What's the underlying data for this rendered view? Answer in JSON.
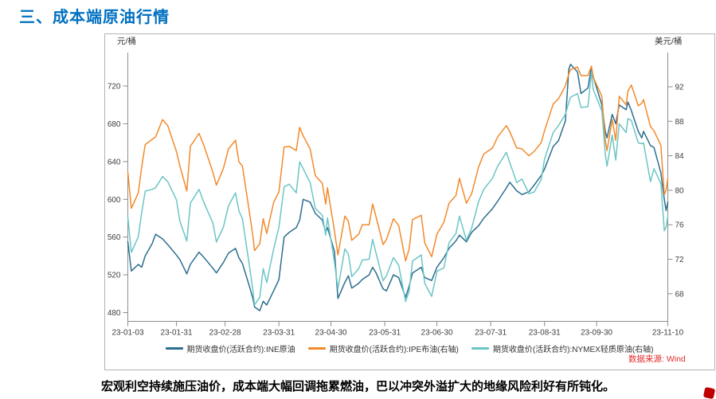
{
  "page": {
    "title": "三、成本端原油行情",
    "caption": "宏观利空持续施压油价，成本端大幅回调拖累燃油，巴以冲突外溢扩大的地缘风险利好有所钝化。",
    "data_source": "数据来源: Wind"
  },
  "colors": {
    "title_blue": "#0070C0",
    "source_red": "#E02A2A",
    "logo_red": "#C00000",
    "ine_blue": "#2C6E8F",
    "brent_orange": "#F28A2C",
    "wti_teal": "#6CC5C5"
  },
  "chart_data": {
    "type": "line",
    "title": "",
    "grid": false,
    "legend_position": "bottom",
    "left_axis": {
      "unit": "元/桶",
      "ticks": [
        480,
        520,
        560,
        600,
        640,
        680,
        720
      ],
      "range": [
        470.7,
        752.1
      ]
    },
    "right_axis": {
      "unit": "美元/桶",
      "ticks": [
        68,
        72,
        76,
        80,
        84,
        88,
        92
      ],
      "range": [
        64.8,
        95.6
      ]
    },
    "x_tick_labels": [
      "23-01-03",
      "23-01-31",
      "23-02-28",
      "23-03-31",
      "23-04-30",
      "23-05-31",
      "23-06-30",
      "23-07-31",
      "23-08-31",
      "23-09-30",
      "23-11-10"
    ],
    "dates": [
      "01-03",
      "01-05",
      "01-09",
      "01-11",
      "01-13",
      "01-17",
      "01-19",
      "01-23",
      "01-26",
      "01-31",
      "02-02",
      "02-06",
      "02-08",
      "02-13",
      "02-16",
      "02-21",
      "02-23",
      "02-27",
      "03-02",
      "03-06",
      "03-08",
      "03-10",
      "03-14",
      "03-16",
      "03-17",
      "03-20",
      "03-22",
      "03-24",
      "03-28",
      "03-31",
      "04-03",
      "04-06",
      "04-10",
      "04-12",
      "04-14",
      "04-18",
      "04-21",
      "04-25",
      "04-27",
      "04-28",
      "05-02",
      "05-04",
      "05-08",
      "05-10",
      "05-12",
      "05-16",
      "05-18",
      "05-22",
      "05-24",
      "05-26",
      "05-30",
      "06-01",
      "06-05",
      "06-08",
      "06-12",
      "06-14",
      "06-16",
      "06-21",
      "06-23",
      "06-27",
      "06-30",
      "07-04",
      "07-07",
      "07-11",
      "07-13",
      "07-17",
      "07-20",
      "07-24",
      "07-27",
      "08-01",
      "08-04",
      "08-09",
      "08-11",
      "08-15",
      "08-18",
      "08-22",
      "08-25",
      "08-29",
      "08-31",
      "09-05",
      "09-08",
      "09-12",
      "09-14",
      "09-15",
      "09-19",
      "09-21",
      "09-25",
      "09-27",
      "09-28",
      "10-03",
      "10-05",
      "10-06",
      "10-09",
      "10-11",
      "10-13",
      "10-17",
      "10-18",
      "10-20",
      "10-24",
      "10-26",
      "10-27",
      "10-31",
      "11-02",
      "11-06",
      "11-08",
      "11-09",
      "11-10"
    ],
    "series": [
      {
        "name": "期货收盘价(活跃合约):INE原油",
        "axis": "left",
        "color": "#2C6E8F",
        "values": [
          555,
          524,
          531,
          528,
          540,
          553,
          563,
          558,
          552,
          541,
          536,
          521,
          531,
          544,
          538,
          527,
          522,
          533,
          543,
          548,
          538,
          532,
          508,
          495,
          486,
          482,
          492,
          488,
          503,
          515,
          560,
          565,
          570,
          578,
          600,
          597,
          585,
          578,
          565,
          570,
          545,
          495,
          512,
          519,
          506,
          511,
          515,
          520,
          528,
          522,
          505,
          503,
          520,
          517,
          496,
          508,
          522,
          528,
          517,
          514,
          528,
          538,
          548,
          556,
          562,
          555,
          565,
          572,
          580,
          590,
          598,
          612,
          618,
          609,
          605,
          608,
          615,
          625,
          632,
          656,
          662,
          683,
          738,
          743,
          735,
          712,
          718,
          740,
          730,
          700,
          672,
          665,
          690,
          680,
          700,
          695,
          703,
          694,
          672,
          665,
          672,
          657,
          655,
          628,
          600,
          588,
          597
        ]
      },
      {
        "name": "期货收盘价(活跃合约):IPE布油(右轴)",
        "axis": "right",
        "color": "#F28A2C",
        "values": [
          82.1,
          77.9,
          79.7,
          82.7,
          85.3,
          85.9,
          86.2,
          88.2,
          87.5,
          84.5,
          82.8,
          79.9,
          85.1,
          86.6,
          85.1,
          82.1,
          80.6,
          82.5,
          84.8,
          85.8,
          83.3,
          82.8,
          77.5,
          74.7,
          73.0,
          73.8,
          76.7,
          75.0,
          78.6,
          79.8,
          85.0,
          85.1,
          84.6,
          87.3,
          86.3,
          84.8,
          81.7,
          80.8,
          78.4,
          80.3,
          75.3,
          72.5,
          77.0,
          76.4,
          74.2,
          74.9,
          76.0,
          76.0,
          78.4,
          76.9,
          73.7,
          74.3,
          76.7,
          75.9,
          71.8,
          73.2,
          76.6,
          77.1,
          73.9,
          72.3,
          74.9,
          76.3,
          78.5,
          79.4,
          81.4,
          78.5,
          79.6,
          82.7,
          84.2,
          84.9,
          86.2,
          87.5,
          86.8,
          84.9,
          84.8,
          84.0,
          84.5,
          85.5,
          86.9,
          90.0,
          90.6,
          92.1,
          93.5,
          94.0,
          94.3,
          93.3,
          93.3,
          94.4,
          93.1,
          90.9,
          85.8,
          84.6,
          88.2,
          85.8,
          90.9,
          89.9,
          91.5,
          92.2,
          89.8,
          90.1,
          90.5,
          87.4,
          86.9,
          85.2,
          79.5,
          80.0,
          81.4
        ]
      },
      {
        "name": "期货收盘价(活跃合约):NYMEX轻质原油(右轴)",
        "axis": "right",
        "color": "#6CC5C5",
        "values": [
          76.9,
          72.8,
          74.6,
          77.4,
          79.9,
          80.1,
          80.3,
          81.6,
          81.0,
          78.9,
          76.4,
          74.1,
          78.5,
          80.1,
          78.5,
          76.2,
          74.0,
          75.7,
          78.2,
          79.7,
          77.6,
          76.7,
          71.3,
          68.4,
          66.7,
          67.6,
          70.9,
          69.3,
          73.2,
          75.7,
          80.4,
          80.7,
          79.7,
          83.3,
          82.5,
          80.9,
          77.9,
          77.1,
          74.8,
          76.8,
          71.7,
          68.6,
          73.2,
          72.6,
          70.0,
          70.9,
          71.9,
          72.0,
          74.3,
          72.7,
          69.5,
          70.1,
          72.2,
          71.3,
          67.1,
          68.3,
          71.8,
          72.5,
          69.2,
          67.7,
          70.6,
          71.0,
          73.9,
          75.0,
          77.0,
          74.2,
          75.6,
          78.7,
          80.1,
          81.4,
          82.8,
          84.4,
          83.2,
          80.9,
          81.3,
          79.6,
          79.8,
          81.2,
          83.6,
          86.7,
          87.5,
          88.8,
          90.2,
          90.8,
          91.2,
          89.6,
          89.7,
          93.7,
          91.7,
          89.2,
          84.2,
          82.8,
          86.4,
          83.5,
          87.7,
          86.7,
          88.3,
          88.1,
          85.5,
          85.4,
          85.5,
          81.0,
          82.5,
          80.8,
          75.3,
          75.7,
          77.0
        ]
      }
    ]
  }
}
